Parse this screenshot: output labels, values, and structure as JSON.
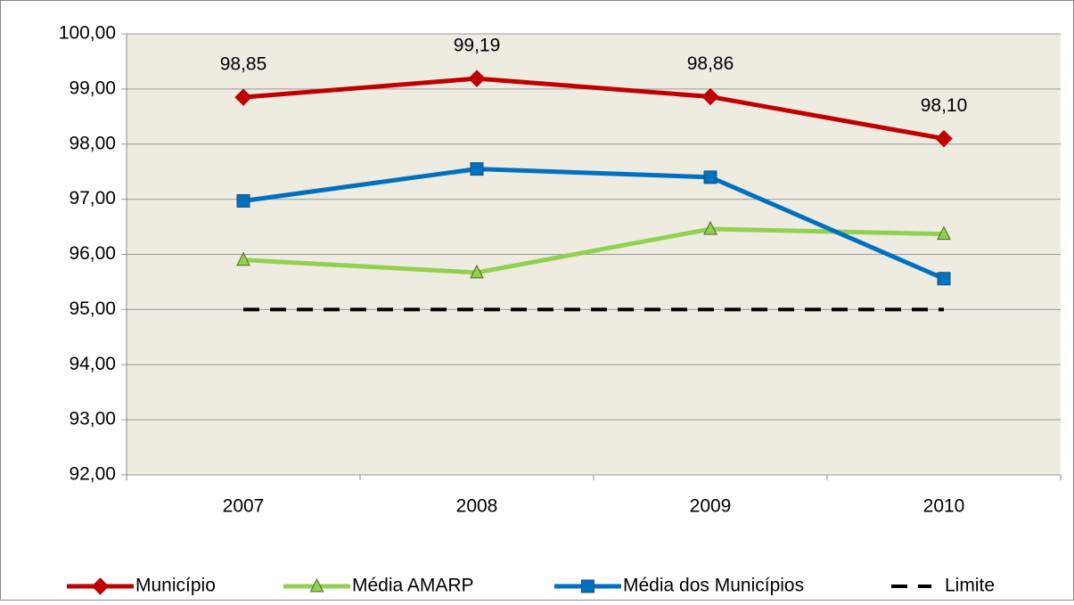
{
  "chart_data": {
    "type": "line",
    "categories": [
      "2007",
      "2008",
      "2009",
      "2010"
    ],
    "ylim": [
      92,
      100
    ],
    "yticks": [
      {
        "value": 92,
        "label": "92,00"
      },
      {
        "value": 93,
        "label": "93,00"
      },
      {
        "value": 94,
        "label": "94,00"
      },
      {
        "value": 95,
        "label": "95,00"
      },
      {
        "value": 96,
        "label": "96,00"
      },
      {
        "value": 97,
        "label": "97,00"
      },
      {
        "value": 98,
        "label": "98,00"
      },
      {
        "value": 99,
        "label": "99,00"
      },
      {
        "value": 100,
        "label": "100,00"
      }
    ],
    "grid": true,
    "legend": "bottom",
    "series": [
      {
        "name": "Município",
        "color": "#c00000",
        "marker": "diamond",
        "values": [
          98.85,
          99.19,
          98.86,
          98.1
        ],
        "value_labels": [
          "98,85",
          "99,19",
          "98,86",
          "98,10"
        ]
      },
      {
        "name": "Média AMARP",
        "color": "#92d050",
        "marker": "triangle",
        "values": [
          95.9,
          95.67,
          96.46,
          96.37
        ]
      },
      {
        "name": "Média dos Municípios",
        "color": "#0070c0",
        "marker": "square",
        "values": [
          96.97,
          97.55,
          97.4,
          95.56
        ]
      },
      {
        "name": "Limite",
        "color": "#000000",
        "marker": "none",
        "dash": true,
        "values": [
          95,
          95,
          95,
          95
        ]
      }
    ]
  }
}
